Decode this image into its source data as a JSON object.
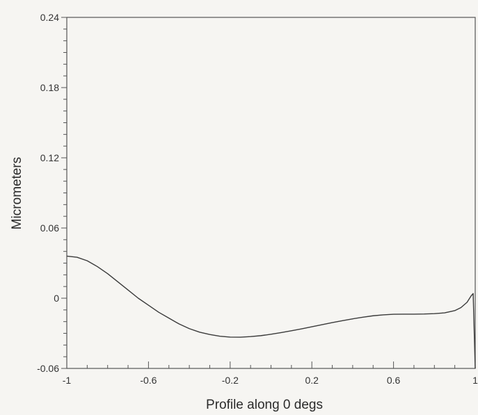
{
  "chart_data": {
    "type": "line",
    "title": "",
    "xlabel": "Profile along 0 degs",
    "ylabel": "Micrometers",
    "xlim": [
      -1,
      1
    ],
    "ylim": [
      -0.06,
      0.24
    ],
    "x_ticks": [
      "-1",
      "-0.6",
      "-0.2",
      "0.2",
      "0.6",
      "1"
    ],
    "x_tick_values": [
      -1,
      -0.6,
      -0.2,
      0.2,
      0.6,
      1
    ],
    "y_ticks": [
      "-0.06",
      "0",
      "0.06",
      "0.12",
      "0.18",
      "0.24"
    ],
    "y_tick_values": [
      -0.06,
      0,
      0.06,
      0.12,
      0.18,
      0.24
    ],
    "grid": false,
    "series": [
      {
        "color": "#3a3a3a",
        "x": [
          -1.0,
          -0.95,
          -0.9,
          -0.85,
          -0.8,
          -0.75,
          -0.7,
          -0.65,
          -0.6,
          -0.55,
          -0.5,
          -0.45,
          -0.4,
          -0.35,
          -0.3,
          -0.25,
          -0.2,
          -0.15,
          -0.1,
          -0.05,
          0.0,
          0.05,
          0.1,
          0.15,
          0.2,
          0.25,
          0.3,
          0.35,
          0.4,
          0.45,
          0.5,
          0.55,
          0.6,
          0.65,
          0.7,
          0.75,
          0.8,
          0.85,
          0.9,
          0.93,
          0.96,
          0.98,
          0.99,
          1.0
        ],
        "y": [
          0.036,
          0.035,
          0.032,
          0.027,
          0.021,
          0.014,
          0.007,
          0.0,
          -0.006,
          -0.012,
          -0.017,
          -0.022,
          -0.026,
          -0.029,
          -0.031,
          -0.0325,
          -0.0332,
          -0.0333,
          -0.0328,
          -0.032,
          -0.0308,
          -0.0294,
          -0.0278,
          -0.0262,
          -0.0244,
          -0.0226,
          -0.0208,
          -0.0192,
          -0.0176,
          -0.0162,
          -0.015,
          -0.0142,
          -0.0137,
          -0.0136,
          -0.0136,
          -0.0135,
          -0.0132,
          -0.0125,
          -0.0106,
          -0.008,
          -0.0035,
          0.002,
          0.004,
          -0.06
        ]
      }
    ]
  }
}
